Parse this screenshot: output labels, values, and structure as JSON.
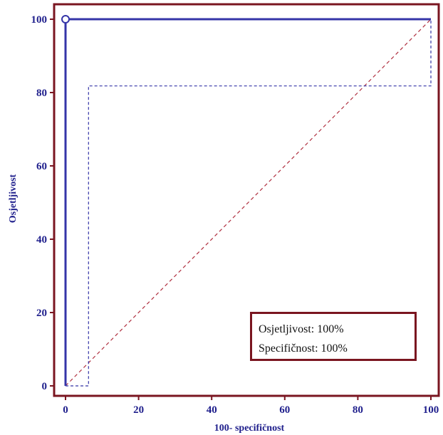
{
  "colors": {
    "frame": "#7a1520",
    "axis_text": "#1f1f8c",
    "roc_line": "#3535a8",
    "ci_line": "#3535a8",
    "diagonal": "#b03040",
    "point_fill": "#ffffff"
  },
  "chart_data": {
    "type": "line",
    "title": "",
    "xlabel": "100- specifičnost",
    "ylabel": "Osjetljivost",
    "xlim": [
      0,
      100
    ],
    "ylim": [
      0,
      100
    ],
    "x_ticks": [
      "0",
      "20",
      "40",
      "60",
      "80",
      "100"
    ],
    "y_ticks": [
      "0",
      "20",
      "40",
      "60",
      "80",
      "100"
    ],
    "grid": false,
    "series": [
      {
        "style": "solid",
        "x": [
          0,
          0,
          100
        ],
        "y": [
          0,
          100,
          100
        ]
      },
      {
        "style": "dashed",
        "x": [
          0,
          6.3,
          6.3,
          100,
          100
        ],
        "y": [
          0,
          0,
          81.8,
          81.8,
          100
        ]
      },
      {
        "style": "dashed",
        "x": [
          0,
          100
        ],
        "y": [
          0,
          100
        ]
      }
    ],
    "markers": [
      {
        "x": 0,
        "y": 100,
        "shape": "open-circle"
      }
    ],
    "legend_placement": "bottom-right",
    "annotations": {
      "sensitivity": "Osjetljivost: 100%",
      "specificity": "Specifičnost: 100%"
    }
  }
}
